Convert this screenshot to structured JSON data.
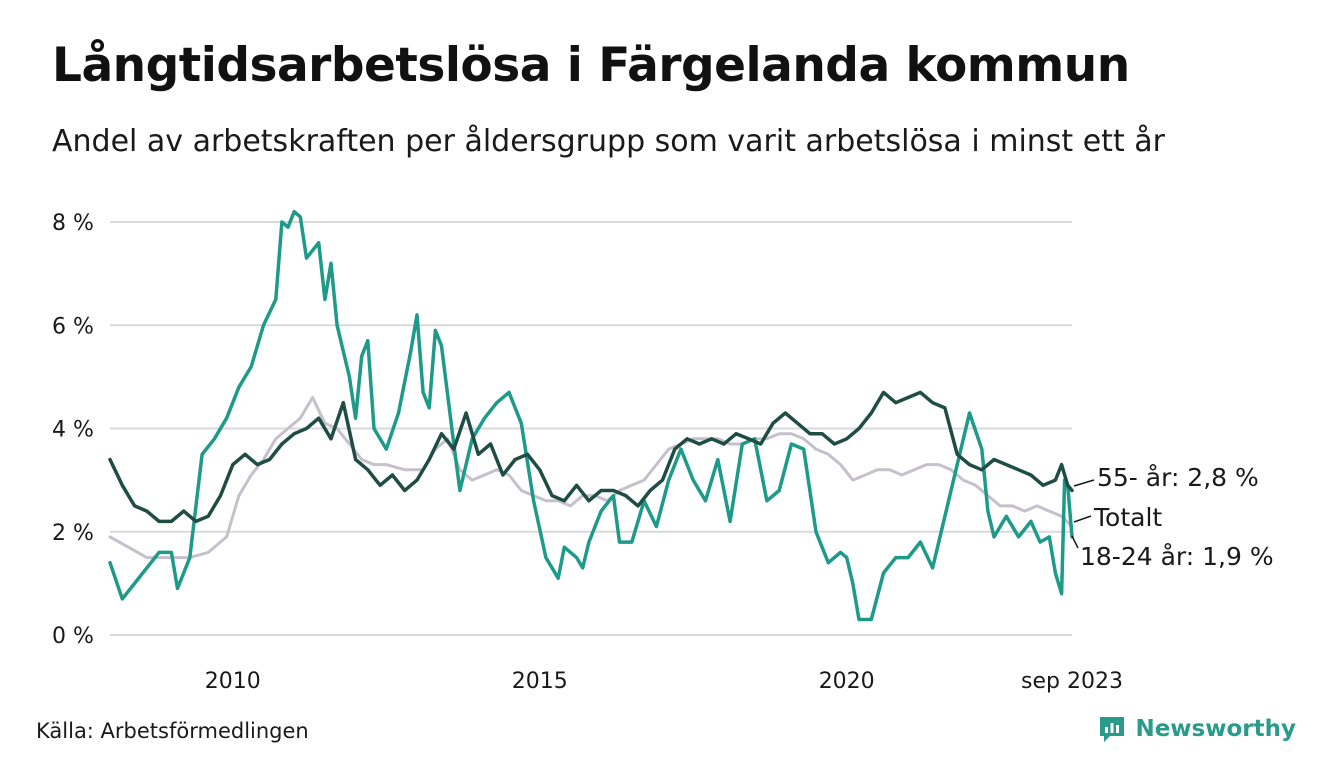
{
  "title": "Långtidsarbetslösa i Färgelanda kommun",
  "subtitle": "Andel av arbetskraften per åldersgrupp som varit arbetslösa i minst ett år",
  "source": "Källa: Arbetsförmedlingen",
  "brand": "Newsworthy",
  "colors": {
    "age_55": "#1f4d44",
    "age_18_24": "#1e9a89",
    "total": "#c6c0cc",
    "grid": "#d9d9d9",
    "brand": "#2a9a8a"
  },
  "chart_data": {
    "type": "line",
    "title": "Långtidsarbetslösa i Färgelanda kommun",
    "xlabel": "",
    "ylabel": "",
    "ylim": [
      0,
      8
    ],
    "xlim": [
      2008.0,
      2023.67
    ],
    "y_ticks": [
      {
        "value": 0,
        "label": "0 %"
      },
      {
        "value": 2,
        "label": "2 %"
      },
      {
        "value": 4,
        "label": "4 %"
      },
      {
        "value": 6,
        "label": "6 %"
      },
      {
        "value": 8,
        "label": "8 %"
      }
    ],
    "x_ticks": [
      {
        "value": 2010,
        "label": "2010"
      },
      {
        "value": 2015,
        "label": "2015"
      },
      {
        "value": 2020,
        "label": "2020"
      },
      {
        "value": 2023.67,
        "label": "sep 2023"
      }
    ],
    "series": [
      {
        "name": "Totalt",
        "label": "Totalt",
        "color": "#c6c0cc",
        "points": [
          [
            2008.0,
            1.9
          ],
          [
            2008.3,
            1.7
          ],
          [
            2008.6,
            1.5
          ],
          [
            2009.0,
            1.5
          ],
          [
            2009.3,
            1.5
          ],
          [
            2009.6,
            1.6
          ],
          [
            2009.9,
            1.9
          ],
          [
            2010.1,
            2.7
          ],
          [
            2010.3,
            3.1
          ],
          [
            2010.5,
            3.4
          ],
          [
            2010.7,
            3.8
          ],
          [
            2010.9,
            4.0
          ],
          [
            2011.1,
            4.2
          ],
          [
            2011.3,
            4.6
          ],
          [
            2011.5,
            4.1
          ],
          [
            2011.7,
            4.0
          ],
          [
            2011.9,
            3.7
          ],
          [
            2012.1,
            3.4
          ],
          [
            2012.3,
            3.3
          ],
          [
            2012.5,
            3.3
          ],
          [
            2012.8,
            3.2
          ],
          [
            2013.1,
            3.2
          ],
          [
            2013.3,
            3.6
          ],
          [
            2013.5,
            3.8
          ],
          [
            2013.7,
            3.2
          ],
          [
            2013.9,
            3.0
          ],
          [
            2014.1,
            3.1
          ],
          [
            2014.3,
            3.2
          ],
          [
            2014.5,
            3.1
          ],
          [
            2014.7,
            2.8
          ],
          [
            2014.9,
            2.7
          ],
          [
            2015.1,
            2.6
          ],
          [
            2015.3,
            2.6
          ],
          [
            2015.5,
            2.5
          ],
          [
            2015.7,
            2.7
          ],
          [
            2015.9,
            2.7
          ],
          [
            2016.1,
            2.6
          ],
          [
            2016.3,
            2.8
          ],
          [
            2016.5,
            2.9
          ],
          [
            2016.7,
            3.0
          ],
          [
            2016.9,
            3.3
          ],
          [
            2017.1,
            3.6
          ],
          [
            2017.3,
            3.7
          ],
          [
            2017.5,
            3.8
          ],
          [
            2017.7,
            3.8
          ],
          [
            2017.9,
            3.8
          ],
          [
            2018.1,
            3.7
          ],
          [
            2018.3,
            3.7
          ],
          [
            2018.5,
            3.8
          ],
          [
            2018.7,
            3.8
          ],
          [
            2018.9,
            3.9
          ],
          [
            2019.1,
            3.9
          ],
          [
            2019.3,
            3.8
          ],
          [
            2019.5,
            3.6
          ],
          [
            2019.7,
            3.5
          ],
          [
            2019.9,
            3.3
          ],
          [
            2020.1,
            3.0
          ],
          [
            2020.3,
            3.1
          ],
          [
            2020.5,
            3.2
          ],
          [
            2020.7,
            3.2
          ],
          [
            2020.9,
            3.1
          ],
          [
            2021.1,
            3.2
          ],
          [
            2021.3,
            3.3
          ],
          [
            2021.5,
            3.3
          ],
          [
            2021.7,
            3.2
          ],
          [
            2021.9,
            3.0
          ],
          [
            2022.1,
            2.9
          ],
          [
            2022.3,
            2.7
          ],
          [
            2022.5,
            2.5
          ],
          [
            2022.7,
            2.5
          ],
          [
            2022.9,
            2.4
          ],
          [
            2023.1,
            2.5
          ],
          [
            2023.3,
            2.4
          ],
          [
            2023.5,
            2.3
          ],
          [
            2023.67,
            2.1
          ]
        ]
      },
      {
        "name": "18-24 år",
        "label": "18-24 år: 1,9 %",
        "color": "#1e9a89",
        "points": [
          [
            2008.0,
            1.4
          ],
          [
            2008.2,
            0.7
          ],
          [
            2008.4,
            1.0
          ],
          [
            2008.6,
            1.3
          ],
          [
            2008.8,
            1.6
          ],
          [
            2009.0,
            1.6
          ],
          [
            2009.1,
            0.9
          ],
          [
            2009.3,
            1.5
          ],
          [
            2009.5,
            3.5
          ],
          [
            2009.7,
            3.8
          ],
          [
            2009.9,
            4.2
          ],
          [
            2010.1,
            4.8
          ],
          [
            2010.3,
            5.2
          ],
          [
            2010.5,
            6.0
          ],
          [
            2010.7,
            6.5
          ],
          [
            2010.8,
            8.0
          ],
          [
            2010.9,
            7.9
          ],
          [
            2011.0,
            8.2
          ],
          [
            2011.1,
            8.1
          ],
          [
            2011.2,
            7.3
          ],
          [
            2011.4,
            7.6
          ],
          [
            2011.5,
            6.5
          ],
          [
            2011.6,
            7.2
          ],
          [
            2011.7,
            6.0
          ],
          [
            2011.9,
            5.0
          ],
          [
            2012.0,
            4.2
          ],
          [
            2012.1,
            5.4
          ],
          [
            2012.2,
            5.7
          ],
          [
            2012.3,
            4.0
          ],
          [
            2012.5,
            3.6
          ],
          [
            2012.7,
            4.3
          ],
          [
            2012.9,
            5.5
          ],
          [
            2013.0,
            6.2
          ],
          [
            2013.1,
            4.7
          ],
          [
            2013.2,
            4.4
          ],
          [
            2013.3,
            5.9
          ],
          [
            2013.4,
            5.6
          ],
          [
            2013.6,
            3.7
          ],
          [
            2013.7,
            2.8
          ],
          [
            2013.9,
            3.8
          ],
          [
            2014.1,
            4.2
          ],
          [
            2014.3,
            4.5
          ],
          [
            2014.5,
            4.7
          ],
          [
            2014.7,
            4.1
          ],
          [
            2014.9,
            2.6
          ],
          [
            2015.1,
            1.5
          ],
          [
            2015.3,
            1.1
          ],
          [
            2015.4,
            1.7
          ],
          [
            2015.6,
            1.5
          ],
          [
            2015.7,
            1.3
          ],
          [
            2015.8,
            1.8
          ],
          [
            2016.0,
            2.4
          ],
          [
            2016.2,
            2.7
          ],
          [
            2016.3,
            1.8
          ],
          [
            2016.5,
            1.8
          ],
          [
            2016.7,
            2.6
          ],
          [
            2016.9,
            2.1
          ],
          [
            2017.1,
            3.0
          ],
          [
            2017.3,
            3.6
          ],
          [
            2017.5,
            3.0
          ],
          [
            2017.7,
            2.6
          ],
          [
            2017.9,
            3.4
          ],
          [
            2018.1,
            2.2
          ],
          [
            2018.3,
            3.7
          ],
          [
            2018.5,
            3.8
          ],
          [
            2018.7,
            2.6
          ],
          [
            2018.9,
            2.8
          ],
          [
            2019.1,
            3.7
          ],
          [
            2019.3,
            3.6
          ],
          [
            2019.5,
            2.0
          ],
          [
            2019.7,
            1.4
          ],
          [
            2019.9,
            1.6
          ],
          [
            2020.0,
            1.5
          ],
          [
            2020.1,
            1.0
          ],
          [
            2020.2,
            0.3
          ],
          [
            2020.4,
            0.3
          ],
          [
            2020.6,
            1.2
          ],
          [
            2020.8,
            1.5
          ],
          [
            2021.0,
            1.5
          ],
          [
            2021.2,
            1.8
          ],
          [
            2021.4,
            1.3
          ],
          [
            2021.6,
            2.3
          ],
          [
            2021.8,
            3.3
          ],
          [
            2022.0,
            4.3
          ],
          [
            2022.2,
            3.6
          ],
          [
            2022.3,
            2.4
          ],
          [
            2022.4,
            1.9
          ],
          [
            2022.6,
            2.3
          ],
          [
            2022.8,
            1.9
          ],
          [
            2023.0,
            2.2
          ],
          [
            2023.15,
            1.8
          ],
          [
            2023.3,
            1.9
          ],
          [
            2023.4,
            1.2
          ],
          [
            2023.5,
            0.8
          ],
          [
            2023.55,
            3.0
          ],
          [
            2023.6,
            2.9
          ],
          [
            2023.67,
            1.9
          ]
        ]
      },
      {
        "name": "55- år",
        "label": "55- år: 2,8 %",
        "color": "#1f4d44",
        "points": [
          [
            2008.0,
            3.4
          ],
          [
            2008.2,
            2.9
          ],
          [
            2008.4,
            2.5
          ],
          [
            2008.6,
            2.4
          ],
          [
            2008.8,
            2.2
          ],
          [
            2009.0,
            2.2
          ],
          [
            2009.2,
            2.4
          ],
          [
            2009.4,
            2.2
          ],
          [
            2009.6,
            2.3
          ],
          [
            2009.8,
            2.7
          ],
          [
            2010.0,
            3.3
          ],
          [
            2010.2,
            3.5
          ],
          [
            2010.4,
            3.3
          ],
          [
            2010.6,
            3.4
          ],
          [
            2010.8,
            3.7
          ],
          [
            2011.0,
            3.9
          ],
          [
            2011.2,
            4.0
          ],
          [
            2011.4,
            4.2
          ],
          [
            2011.6,
            3.8
          ],
          [
            2011.8,
            4.5
          ],
          [
            2012.0,
            3.4
          ],
          [
            2012.2,
            3.2
          ],
          [
            2012.4,
            2.9
          ],
          [
            2012.6,
            3.1
          ],
          [
            2012.8,
            2.8
          ],
          [
            2013.0,
            3.0
          ],
          [
            2013.2,
            3.4
          ],
          [
            2013.4,
            3.9
          ],
          [
            2013.6,
            3.6
          ],
          [
            2013.8,
            4.3
          ],
          [
            2014.0,
            3.5
          ],
          [
            2014.2,
            3.7
          ],
          [
            2014.4,
            3.1
          ],
          [
            2014.6,
            3.4
          ],
          [
            2014.8,
            3.5
          ],
          [
            2015.0,
            3.2
          ],
          [
            2015.2,
            2.7
          ],
          [
            2015.4,
            2.6
          ],
          [
            2015.6,
            2.9
          ],
          [
            2015.8,
            2.6
          ],
          [
            2016.0,
            2.8
          ],
          [
            2016.2,
            2.8
          ],
          [
            2016.4,
            2.7
          ],
          [
            2016.6,
            2.5
          ],
          [
            2016.8,
            2.8
          ],
          [
            2017.0,
            3.0
          ],
          [
            2017.2,
            3.6
          ],
          [
            2017.4,
            3.8
          ],
          [
            2017.6,
            3.7
          ],
          [
            2017.8,
            3.8
          ],
          [
            2018.0,
            3.7
          ],
          [
            2018.2,
            3.9
          ],
          [
            2018.4,
            3.8
          ],
          [
            2018.6,
            3.7
          ],
          [
            2018.8,
            4.1
          ],
          [
            2019.0,
            4.3
          ],
          [
            2019.2,
            4.1
          ],
          [
            2019.4,
            3.9
          ],
          [
            2019.6,
            3.9
          ],
          [
            2019.8,
            3.7
          ],
          [
            2020.0,
            3.8
          ],
          [
            2020.2,
            4.0
          ],
          [
            2020.4,
            4.3
          ],
          [
            2020.6,
            4.7
          ],
          [
            2020.8,
            4.5
          ],
          [
            2021.0,
            4.6
          ],
          [
            2021.2,
            4.7
          ],
          [
            2021.4,
            4.5
          ],
          [
            2021.6,
            4.4
          ],
          [
            2021.8,
            3.5
          ],
          [
            2022.0,
            3.3
          ],
          [
            2022.2,
            3.2
          ],
          [
            2022.4,
            3.4
          ],
          [
            2022.6,
            3.3
          ],
          [
            2022.8,
            3.2
          ],
          [
            2023.0,
            3.1
          ],
          [
            2023.2,
            2.9
          ],
          [
            2023.4,
            3.0
          ],
          [
            2023.5,
            3.3
          ],
          [
            2023.6,
            2.9
          ],
          [
            2023.67,
            2.8
          ]
        ]
      }
    ]
  }
}
